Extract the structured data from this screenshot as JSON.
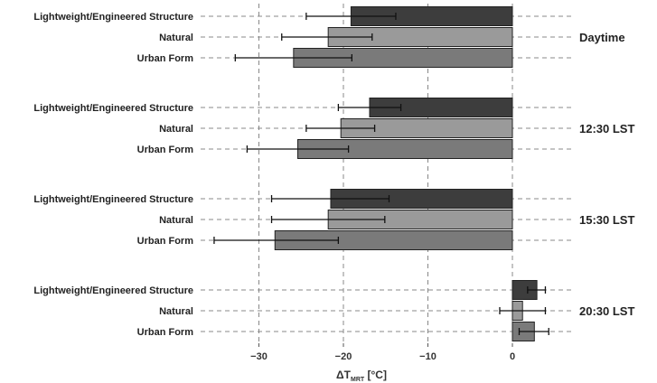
{
  "chart_data": {
    "type": "bar",
    "orientation": "horizontal",
    "xlabel": "ΔT",
    "xlabel_subscript": "MRT",
    "xlabel_unit": " [°C]",
    "xlim": [
      -40,
      4
    ],
    "xticks": [
      -30,
      -20,
      -10,
      0
    ],
    "grid": "dashed",
    "categories": [
      "Lightweight/Engineered Structure",
      "Natural",
      "Urban Form"
    ],
    "colors": {
      "Lightweight/Engineered Structure": "#3d3d3d",
      "Natural": "#9a9a9a",
      "Urban Form": "#7a7a7a"
    },
    "groups": [
      {
        "label": "Daytime",
        "bars": [
          {
            "category": "Lightweight/Engineered Structure",
            "value": -19.1,
            "err_low": -24.4,
            "err_high": -13.8
          },
          {
            "category": "Natural",
            "value": -21.8,
            "err_low": -27.3,
            "err_high": -16.6
          },
          {
            "category": "Urban Form",
            "value": -25.9,
            "err_low": -32.8,
            "err_high": -19.0
          }
        ]
      },
      {
        "label": "12:30 LST",
        "bars": [
          {
            "category": "Lightweight/Engineered Structure",
            "value": -16.9,
            "err_low": -20.6,
            "err_high": -13.2
          },
          {
            "category": "Natural",
            "value": -20.3,
            "err_low": -24.4,
            "err_high": -16.3
          },
          {
            "category": "Urban Form",
            "value": -25.4,
            "err_low": -31.4,
            "err_high": -19.4
          }
        ]
      },
      {
        "label": "15:30 LST",
        "bars": [
          {
            "category": "Lightweight/Engineered Structure",
            "value": -21.5,
            "err_low": -28.5,
            "err_high": -14.6
          },
          {
            "category": "Natural",
            "value": -21.8,
            "err_low": -28.5,
            "err_high": -15.1
          },
          {
            "category": "Urban Form",
            "value": -28.1,
            "err_low": -35.3,
            "err_high": -20.6
          }
        ]
      },
      {
        "label": "20:30 LST",
        "bars": [
          {
            "category": "Lightweight/Engineered Structure",
            "value": 2.9,
            "err_low": 1.8,
            "err_high": 3.9
          },
          {
            "category": "Natural",
            "value": 1.2,
            "err_low": -1.5,
            "err_high": 3.9
          },
          {
            "category": "Urban Form",
            "value": 2.6,
            "err_low": 0.8,
            "err_high": 4.3
          }
        ]
      }
    ]
  }
}
